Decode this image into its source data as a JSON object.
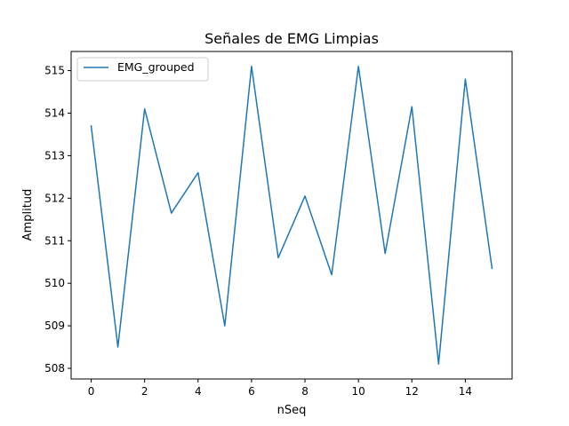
{
  "chart_data": {
    "type": "line",
    "title": "Señales de EMG Limpias",
    "xlabel": "nSeq",
    "ylabel": "Amplitud",
    "xlim": [
      -0.75,
      15.75
    ],
    "ylim": [
      507.75,
      515.45
    ],
    "xticks": [
      0,
      2,
      4,
      6,
      8,
      10,
      12,
      14
    ],
    "yticks": [
      508,
      509,
      510,
      511,
      512,
      513,
      514,
      515
    ],
    "grid": false,
    "legend_position": "top-left",
    "series": [
      {
        "name": "EMG_grouped",
        "color": "#1f77b4",
        "x": [
          0,
          1,
          2,
          3,
          4,
          5,
          6,
          7,
          8,
          9,
          10,
          11,
          12,
          13,
          14,
          15
        ],
        "y": [
          513.7,
          508.5,
          514.1,
          511.65,
          512.6,
          509.0,
          515.1,
          510.6,
          512.05,
          510.2,
          515.1,
          510.7,
          514.15,
          508.1,
          514.8,
          510.35
        ]
      }
    ]
  }
}
